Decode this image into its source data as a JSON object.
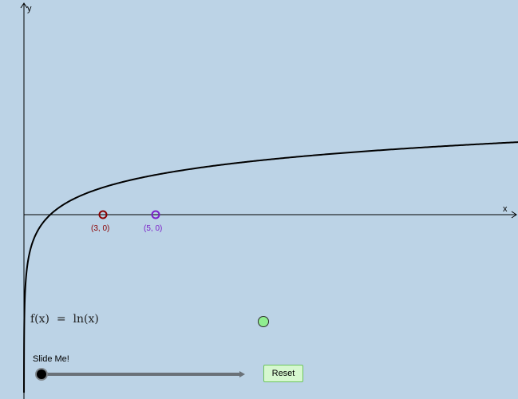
{
  "axes": {
    "x_label": "x",
    "y_label": "y"
  },
  "function": {
    "label": "f(x)  =  ln(x)",
    "color": "#000000"
  },
  "points": [
    {
      "label": "(3, 0)",
      "x": 3,
      "y": 0,
      "color": "#8b0000"
    },
    {
      "label": "(5, 0)",
      "x": 5,
      "y": 0,
      "color": "#7b21c9"
    }
  ],
  "slider": {
    "title": "Slide Me!",
    "value": 0
  },
  "reset_button": {
    "label": "Reset"
  },
  "toggle_point": {
    "color": "#90ee90"
  }
}
